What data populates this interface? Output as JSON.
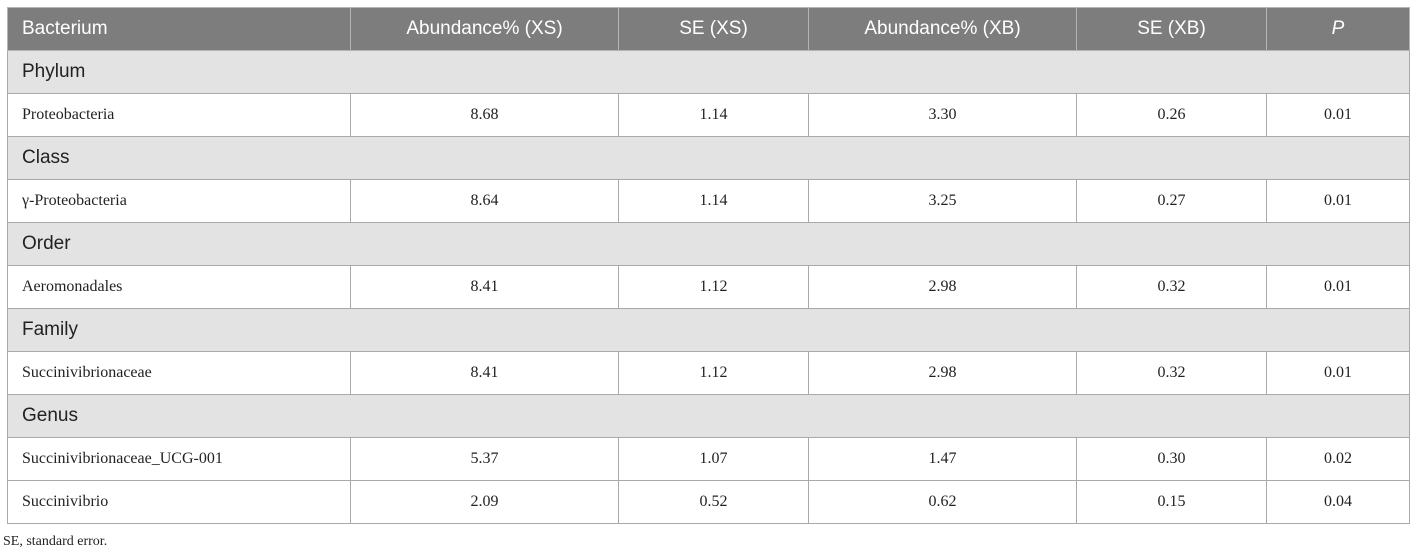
{
  "table": {
    "headers": [
      "Bacterium",
      "Abundance% (XS)",
      "SE (XS)",
      "Abundance% (XB)",
      "SE (XB)",
      "P"
    ],
    "sections": [
      {
        "label": "Phylum",
        "rows": [
          {
            "name": "Proteobacteria",
            "values": [
              "8.68",
              "1.14",
              "3.30",
              "0.26",
              "0.01"
            ]
          }
        ]
      },
      {
        "label": "Class",
        "rows": [
          {
            "name": "γ-Proteobacteria",
            "values": [
              "8.64",
              "1.14",
              "3.25",
              "0.27",
              "0.01"
            ]
          }
        ]
      },
      {
        "label": "Order",
        "rows": [
          {
            "name": "Aeromonadales",
            "values": [
              "8.41",
              "1.12",
              "2.98",
              "0.32",
              "0.01"
            ]
          }
        ]
      },
      {
        "label": "Family",
        "rows": [
          {
            "name": "Succinivibrionaceae",
            "values": [
              "8.41",
              "1.12",
              "2.98",
              "0.32",
              "0.01"
            ]
          }
        ]
      },
      {
        "label": "Genus",
        "rows": [
          {
            "name": "Succinivibrionaceae_UCG-001",
            "values": [
              "5.37",
              "1.07",
              "1.47",
              "0.30",
              "0.02"
            ]
          },
          {
            "name": "Succinivibrio",
            "values": [
              "2.09",
              "0.52",
              "0.62",
              "0.15",
              "0.04"
            ]
          }
        ]
      }
    ]
  },
  "footnote": "SE, standard error."
}
